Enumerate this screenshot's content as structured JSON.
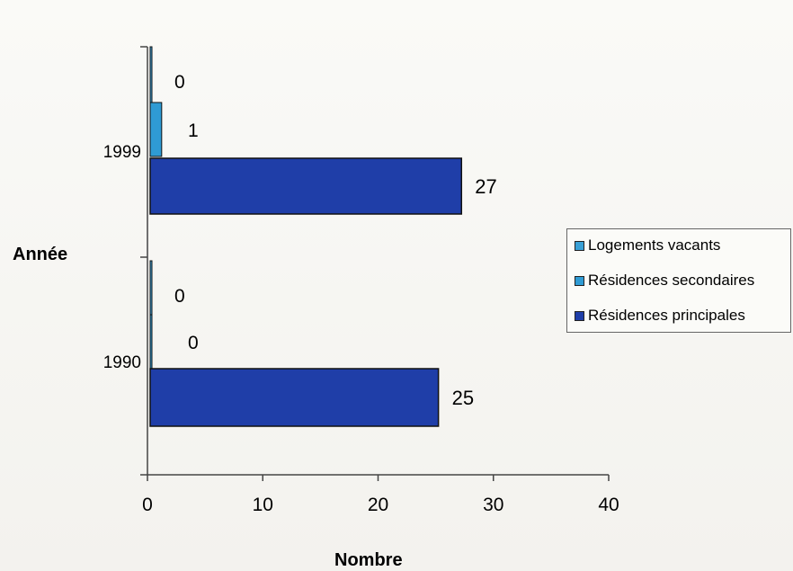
{
  "chart_data": {
    "type": "bar",
    "orientation": "horizontal",
    "title": "",
    "xlabel": "Nombre",
    "ylabel": "Année",
    "categories": [
      "1999",
      "1990"
    ],
    "series": [
      {
        "name": "Logements vacants",
        "values": [
          0,
          0
        ],
        "color": "#3aa0d6"
      },
      {
        "name": "Résidences secondaires",
        "values": [
          1,
          0
        ],
        "color": "#2f9bd4"
      },
      {
        "name": "Résidences principales",
        "values": [
          27,
          25
        ],
        "color": "#1f3ea8"
      }
    ],
    "xlim": [
      0,
      40
    ],
    "xticks": [
      "0",
      "10",
      "20",
      "30",
      "40"
    ],
    "grid": false,
    "legend_position": "right"
  }
}
